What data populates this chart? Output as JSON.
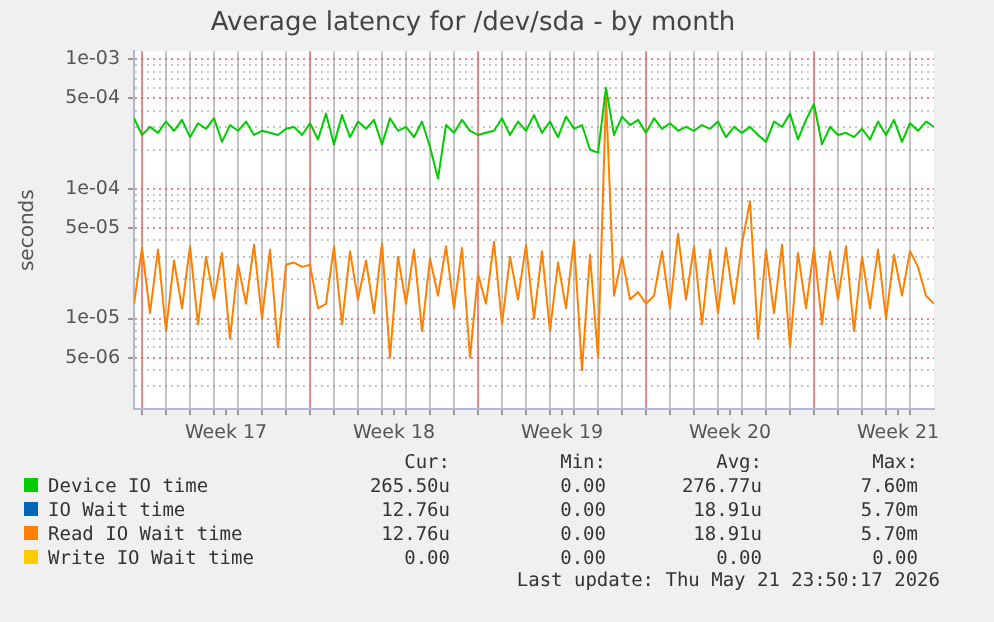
{
  "chart_data": {
    "type": "line",
    "title": "Average latency for /dev/sda - by month",
    "ylabel": "seconds",
    "log": "y",
    "grid": true,
    "legend": "bottom",
    "marker": "none",
    "x": [
      "2026-04-18T16:00",
      "2026-04-19T00:00",
      "2026-04-19T08:00",
      "2026-04-19T16:00",
      "2026-04-20T00:00",
      "2026-04-20T08:00",
      "2026-04-20T16:00",
      "2026-04-21T00:00",
      "2026-04-21T08:00",
      "2026-04-21T16:00",
      "2026-04-22T00:00",
      "2026-04-22T08:00",
      "2026-04-22T16:00",
      "2026-04-23T00:00",
      "2026-04-23T08:00",
      "2026-04-23T16:00",
      "2026-04-24T00:00",
      "2026-04-24T08:00",
      "2026-04-24T16:00",
      "2026-04-25T00:00",
      "2026-04-25T08:00",
      "2026-04-25T16:00",
      "2026-04-26T00:00",
      "2026-04-26T08:00",
      "2026-04-26T16:00",
      "2026-04-27T00:00",
      "2026-04-27T08:00",
      "2026-04-27T16:00",
      "2026-04-28T00:00",
      "2026-04-28T08:00",
      "2026-04-28T16:00",
      "2026-04-29T00:00",
      "2026-04-29T08:00",
      "2026-04-29T16:00",
      "2026-04-30T00:00",
      "2026-04-30T08:00",
      "2026-04-30T16:00",
      "2026-05-01T00:00",
      "2026-05-01T08:00",
      "2026-05-01T16:00",
      "2026-05-02T00:00",
      "2026-05-02T08:00",
      "2026-05-02T16:00",
      "2026-05-03T00:00",
      "2026-05-03T08:00",
      "2026-05-03T16:00",
      "2026-05-04T00:00",
      "2026-05-04T08:00",
      "2026-05-04T16:00",
      "2026-05-05T00:00",
      "2026-05-05T08:00",
      "2026-05-05T16:00",
      "2026-05-06T00:00",
      "2026-05-06T08:00",
      "2026-05-06T16:00",
      "2026-05-07T00:00",
      "2026-05-07T08:00",
      "2026-05-07T16:00",
      "2026-05-08T00:00",
      "2026-05-08T08:00",
      "2026-05-08T16:00",
      "2026-05-09T00:00",
      "2026-05-09T08:00",
      "2026-05-09T16:00",
      "2026-05-10T00:00",
      "2026-05-10T08:00",
      "2026-05-10T16:00",
      "2026-05-11T00:00",
      "2026-05-11T08:00",
      "2026-05-11T16:00",
      "2026-05-12T00:00",
      "2026-05-12T08:00",
      "2026-05-12T16:00",
      "2026-05-13T00:00",
      "2026-05-13T08:00",
      "2026-05-13T16:00",
      "2026-05-14T00:00",
      "2026-05-14T08:00",
      "2026-05-14T16:00",
      "2026-05-15T00:00",
      "2026-05-15T08:00",
      "2026-05-15T16:00",
      "2026-05-16T00:00",
      "2026-05-16T08:00",
      "2026-05-16T16:00",
      "2026-05-17T00:00",
      "2026-05-17T08:00",
      "2026-05-17T16:00",
      "2026-05-18T00:00",
      "2026-05-18T08:00",
      "2026-05-18T16:00",
      "2026-05-19T00:00",
      "2026-05-19T08:00",
      "2026-05-19T16:00",
      "2026-05-20T00:00",
      "2026-05-20T08:00",
      "2026-05-20T16:00",
      "2026-05-21T00:00",
      "2026-05-21T08:00",
      "2026-05-21T16:00",
      "2026-05-22T00:00"
    ],
    "xlim": [
      "2026-04-18T16:00",
      "2026-05-22T00:00"
    ],
    "xticks": [
      {
        "value": "2026-04-19",
        "label": null
      },
      {
        "value": "2026-04-20",
        "label": null
      },
      {
        "value": "2026-04-21",
        "label": null
      },
      {
        "value": "2026-04-22",
        "label": null
      },
      {
        "value": "2026-04-22T12:00",
        "label": "Week 17"
      },
      {
        "value": "2026-04-23",
        "label": null
      },
      {
        "value": "2026-04-24",
        "label": null
      },
      {
        "value": "2026-04-25",
        "label": null
      },
      {
        "value": "2026-04-26",
        "label": null
      },
      {
        "value": "2026-04-27",
        "label": null
      },
      {
        "value": "2026-04-28",
        "label": null
      },
      {
        "value": "2026-04-29",
        "label": null
      },
      {
        "value": "2026-04-29T12:00",
        "label": "Week 18"
      },
      {
        "value": "2026-04-30",
        "label": null
      },
      {
        "value": "2026-05-01",
        "label": null
      },
      {
        "value": "2026-05-02",
        "label": null
      },
      {
        "value": "2026-05-03",
        "label": null
      },
      {
        "value": "2026-05-04",
        "label": null
      },
      {
        "value": "2026-05-05",
        "label": null
      },
      {
        "value": "2026-05-06",
        "label": null
      },
      {
        "value": "2026-05-06T12:00",
        "label": "Week 19"
      },
      {
        "value": "2026-05-07",
        "label": null
      },
      {
        "value": "2026-05-08",
        "label": null
      },
      {
        "value": "2026-05-09",
        "label": null
      },
      {
        "value": "2026-05-10",
        "label": null
      },
      {
        "value": "2026-05-11",
        "label": null
      },
      {
        "value": "2026-05-12",
        "label": null
      },
      {
        "value": "2026-05-13",
        "label": null
      },
      {
        "value": "2026-05-13T12:00",
        "label": "Week 20"
      },
      {
        "value": "2026-05-14",
        "label": null
      },
      {
        "value": "2026-05-15",
        "label": null
      },
      {
        "value": "2026-05-16",
        "label": null
      },
      {
        "value": "2026-05-17",
        "label": null
      },
      {
        "value": "2026-05-18",
        "label": null
      },
      {
        "value": "2026-05-19",
        "label": null
      },
      {
        "value": "2026-05-20",
        "label": null
      },
      {
        "value": "2026-05-20T12:00",
        "label": "Week 21"
      },
      {
        "value": "2026-05-21",
        "label": null
      }
    ],
    "ylim": [
      2e-06,
      0.00115
    ],
    "yticks": [
      {
        "value": 2e-06,
        "label": null
      },
      {
        "value": 3e-06,
        "label": null
      },
      {
        "value": 4e-06,
        "label": null
      },
      {
        "value": 5e-06,
        "label": "5e-06"
      },
      {
        "value": 6e-06,
        "label": null
      },
      {
        "value": 7e-06,
        "label": null
      },
      {
        "value": 8e-06,
        "label": null
      },
      {
        "value": 9e-06,
        "label": null
      },
      {
        "value": 1e-05,
        "label": "1e-05"
      },
      {
        "value": 2e-05,
        "label": null
      },
      {
        "value": 3e-05,
        "label": null
      },
      {
        "value": 4e-05,
        "label": null
      },
      {
        "value": 5e-05,
        "label": "5e-05"
      },
      {
        "value": 6e-05,
        "label": null
      },
      {
        "value": 7e-05,
        "label": null
      },
      {
        "value": 8e-05,
        "label": null
      },
      {
        "value": 9e-05,
        "label": null
      },
      {
        "value": 0.0001,
        "label": "1e-04"
      },
      {
        "value": 0.0002,
        "label": null
      },
      {
        "value": 0.0003,
        "label": null
      },
      {
        "value": 0.0004,
        "label": null
      },
      {
        "value": 0.0005,
        "label": "5e-04"
      },
      {
        "value": 0.0006,
        "label": null
      },
      {
        "value": 0.0007,
        "label": null
      },
      {
        "value": 0.0008,
        "label": null
      },
      {
        "value": 0.0009,
        "label": null
      },
      {
        "value": 0.001,
        "label": "1e-03"
      }
    ],
    "series": [
      {
        "name": "Device IO time",
        "color": "#00cc00",
        "values": [
          0.00035,
          0.00026,
          0.0003,
          0.00027,
          0.00033,
          0.00028,
          0.00034,
          0.00025,
          0.00032,
          0.00029,
          0.00035,
          0.00023,
          0.00031,
          0.00028,
          0.00033,
          0.00026,
          0.00028,
          0.00027,
          0.00026,
          0.00029,
          0.0003,
          0.00026,
          0.00032,
          0.00024,
          0.00038,
          0.00022,
          0.00037,
          0.00025,
          0.00033,
          0.00029,
          0.00034,
          0.00022,
          0.00035,
          0.00028,
          0.0003,
          0.00025,
          0.00033,
          0.00021,
          0.00012,
          0.00031,
          0.00027,
          0.00034,
          0.00028,
          0.00026,
          0.00027,
          0.00028,
          0.00035,
          0.00026,
          0.00033,
          0.00028,
          0.00037,
          0.00027,
          0.00033,
          0.00025,
          0.00036,
          0.00029,
          0.00031,
          0.0002,
          0.00019,
          0.0006,
          0.00026,
          0.00036,
          0.00031,
          0.00034,
          0.00027,
          0.00035,
          0.00029,
          0.00032,
          0.00028,
          0.0003,
          0.00028,
          0.00031,
          0.00029,
          0.00033,
          0.00025,
          0.0003,
          0.00027,
          0.0003,
          0.00026,
          0.00023,
          0.00033,
          0.0003,
          0.00038,
          0.00024,
          0.00034,
          0.00045,
          0.00022,
          0.0003,
          0.00026,
          0.00027,
          0.00025,
          0.00029,
          0.00024,
          0.00033,
          0.00026,
          0.00034,
          0.00023,
          0.00032,
          0.00028,
          0.00033,
          0.0003
        ]
      },
      {
        "name": "IO Wait time",
        "color": "#0066b3",
        "values": [
          null,
          null,
          null,
          null,
          null,
          null,
          null,
          null,
          null,
          null,
          null,
          null,
          null,
          null,
          null,
          null,
          null,
          null,
          null,
          null,
          null,
          null,
          null,
          null,
          null,
          null,
          null,
          null,
          null,
          null,
          null,
          null,
          null,
          null,
          null,
          null,
          null,
          null,
          null,
          null,
          null,
          null,
          null,
          null,
          null,
          null,
          null,
          null,
          null,
          null,
          null,
          null,
          null,
          null,
          null,
          null,
          null,
          null,
          null,
          null,
          null,
          null,
          null,
          null,
          null,
          null,
          null,
          null,
          null,
          null,
          null,
          null,
          null,
          null,
          null,
          null,
          null,
          null,
          null,
          null,
          null,
          null,
          null,
          null,
          null,
          null,
          null,
          null,
          null,
          null,
          null,
          null,
          null,
          null,
          null,
          null,
          null,
          null,
          null,
          null,
          null
        ]
      },
      {
        "name": "Read IO Wait time",
        "color": "#ff8000",
        "values": [
          1.3e-05,
          3.5e-05,
          1.1e-05,
          3.4e-05,
          8e-06,
          2.8e-05,
          1.2e-05,
          3.6e-05,
          9e-06,
          3e-05,
          1.4e-05,
          3.2e-05,
          7e-06,
          2.6e-05,
          1.3e-05,
          3.7e-05,
          1e-05,
          3.4e-05,
          6e-06,
          2.6e-05,
          2.7e-05,
          2.5e-05,
          2.6e-05,
          1.2e-05,
          1.3e-05,
          3.6e-05,
          9e-06,
          3.3e-05,
          1.4e-05,
          2.8e-05,
          1.1e-05,
          3.8e-05,
          5e-06,
          3e-05,
          1.3e-05,
          3.4e-05,
          8e-06,
          2.9e-05,
          1.5e-05,
          3.6e-05,
          1.2e-05,
          3.5e-05,
          5e-06,
          2.2e-05,
          1.3e-05,
          3.9e-05,
          9e-06,
          3e-05,
          1.4e-05,
          3.7e-05,
          1e-05,
          3.3e-05,
          8e-06,
          2.7e-05,
          1.2e-05,
          4e-05,
          4e-06,
          3.1e-05,
          5e-06,
          0.00052,
          1.5e-05,
          3e-05,
          1.4e-05,
          1.6e-05,
          1.3e-05,
          1.5e-05,
          3.3e-05,
          1.2e-05,
          4.5e-05,
          1.4e-05,
          3.6e-05,
          9e-06,
          3.4e-05,
          1.1e-05,
          3.5e-05,
          1.3e-05,
          3.8e-05,
          8e-05,
          7e-06,
          3.4e-05,
          1.1e-05,
          3.7e-05,
          6e-06,
          3.2e-05,
          1.2e-05,
          3.5e-05,
          9e-06,
          3.3e-05,
          1.4e-05,
          3.6e-05,
          8e-06,
          3e-05,
          1.2e-05,
          3.4e-05,
          1e-05,
          3.1e-05,
          1.5e-05,
          3.3e-05,
          2.5e-05,
          1.5e-05,
          1.3e-05
        ]
      },
      {
        "name": "Write IO Wait time",
        "color": "#ffcc00",
        "values": [
          null,
          null,
          null,
          null,
          null,
          null,
          null,
          null,
          null,
          null,
          null,
          null,
          null,
          null,
          null,
          null,
          null,
          null,
          null,
          null,
          null,
          null,
          null,
          null,
          null,
          null,
          null,
          null,
          null,
          null,
          null,
          null,
          null,
          null,
          null,
          null,
          null,
          null,
          null,
          null,
          null,
          null,
          null,
          null,
          null,
          null,
          null,
          null,
          null,
          null,
          null,
          null,
          null,
          null,
          null,
          null,
          null,
          null,
          null,
          null,
          null,
          null,
          null,
          null,
          null,
          null,
          null,
          null,
          null,
          null,
          null,
          null,
          null,
          null,
          null,
          null,
          null,
          null,
          null,
          null,
          null,
          null,
          null,
          null,
          null,
          null,
          null,
          null,
          null,
          null,
          null,
          null,
          null,
          null,
          null,
          null,
          null,
          null,
          null,
          null,
          null
        ]
      }
    ],
    "annotations": [
      "Cur:",
      "Min:",
      "Avg:",
      "Max:",
      "265.50u",
      "0.00",
      "276.77u",
      "7.60m",
      "12.76u",
      "0.00",
      "18.91u",
      "5.70m",
      "12.76u",
      "0.00",
      "18.91u",
      "5.70m",
      "0.00",
      "0.00",
      "0.00",
      "0.00",
      "Last update: Thu May 21 23:50:17 2026"
    ]
  }
}
